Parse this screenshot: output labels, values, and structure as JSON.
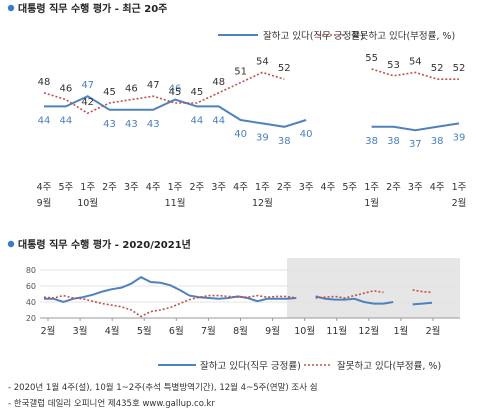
{
  "colors": {
    "approve": "#4f81bd",
    "disapprove": "#c0504d",
    "accent": "#3a7bc8",
    "shade": "#e6e6e6"
  },
  "legend": {
    "approve": "잘하고 있다(직무 긍정률)",
    "disapprove": "잘못하고 있다(부정률, %)"
  },
  "notes": [
    "- 2020년 1월 4주(설), 10월 1~2주(추석 특별방역기간), 12월 4~5주(연말) 조사 쉼",
    "- 한국갤럽 데일리 오피니언 제435호 www.gallup.co.kr"
  ],
  "chart_data": [
    {
      "type": "line",
      "title": "대통령 직무 수행 평가 - 최근 20주",
      "x_week": [
        "4주",
        "5주",
        "1주",
        "2주",
        "3주",
        "4주",
        "1주",
        "2주",
        "3주",
        "4주",
        "1주",
        "2주",
        "3주",
        "4주",
        "5주",
        "1주",
        "2주",
        "3주",
        "4주",
        "1주"
      ],
      "x_month": [
        "9월",
        "",
        "10월",
        "",
        "",
        "",
        "11월",
        "",
        "",
        "",
        "12월",
        "",
        "",
        "",
        "",
        "1월",
        "",
        "",
        "",
        "2월"
      ],
      "series": [
        {
          "name": "잘하고 있다(직무 긍정률)",
          "values": [
            44,
            44,
            47,
            43,
            43,
            43,
            46,
            44,
            44,
            40,
            39,
            38,
            40,
            null,
            null,
            38,
            38,
            37,
            38,
            39
          ]
        },
        {
          "name": "잘못하고 있다(부정률, %)",
          "values": [
            48,
            46,
            42,
            45,
            46,
            47,
            45,
            45,
            48,
            51,
            54,
            52,
            null,
            null,
            null,
            55,
            53,
            54,
            52,
            52
          ]
        }
      ]
    },
    {
      "type": "line",
      "title": "대통령 직무 수행 평가 - 2020/2021년",
      "x_ticks": [
        "2월",
        "3월",
        "4월",
        "5월",
        "6월",
        "7월",
        "8월",
        "9월",
        "10월",
        "11월",
        "12월",
        "1월",
        "2월"
      ],
      "y_ticks": [
        20,
        40,
        60,
        80
      ],
      "ylim": [
        20,
        80
      ],
      "series": [
        {
          "name": "잘하고 있다(직무 긍정률)",
          "values": [
            44,
            44,
            40,
            44,
            46,
            49,
            53,
            56,
            58,
            63,
            71,
            65,
            64,
            61,
            55,
            48,
            46,
            45,
            44,
            45,
            47,
            45,
            41,
            44,
            44,
            44,
            45,
            null,
            47,
            44,
            43,
            43,
            44,
            40,
            38,
            38,
            40,
            null,
            37,
            38,
            39
          ]
        },
        {
          "name": "잘못하고 있다(부정률, %)",
          "values": [
            46,
            45,
            48,
            45,
            44,
            41,
            38,
            36,
            34,
            30,
            22,
            28,
            30,
            33,
            38,
            43,
            46,
            48,
            48,
            47,
            46,
            46,
            48,
            46,
            47,
            47,
            45,
            null,
            45,
            46,
            47,
            45,
            48,
            51,
            54,
            52,
            null,
            null,
            55,
            53,
            52
          ]
        }
      ]
    }
  ]
}
